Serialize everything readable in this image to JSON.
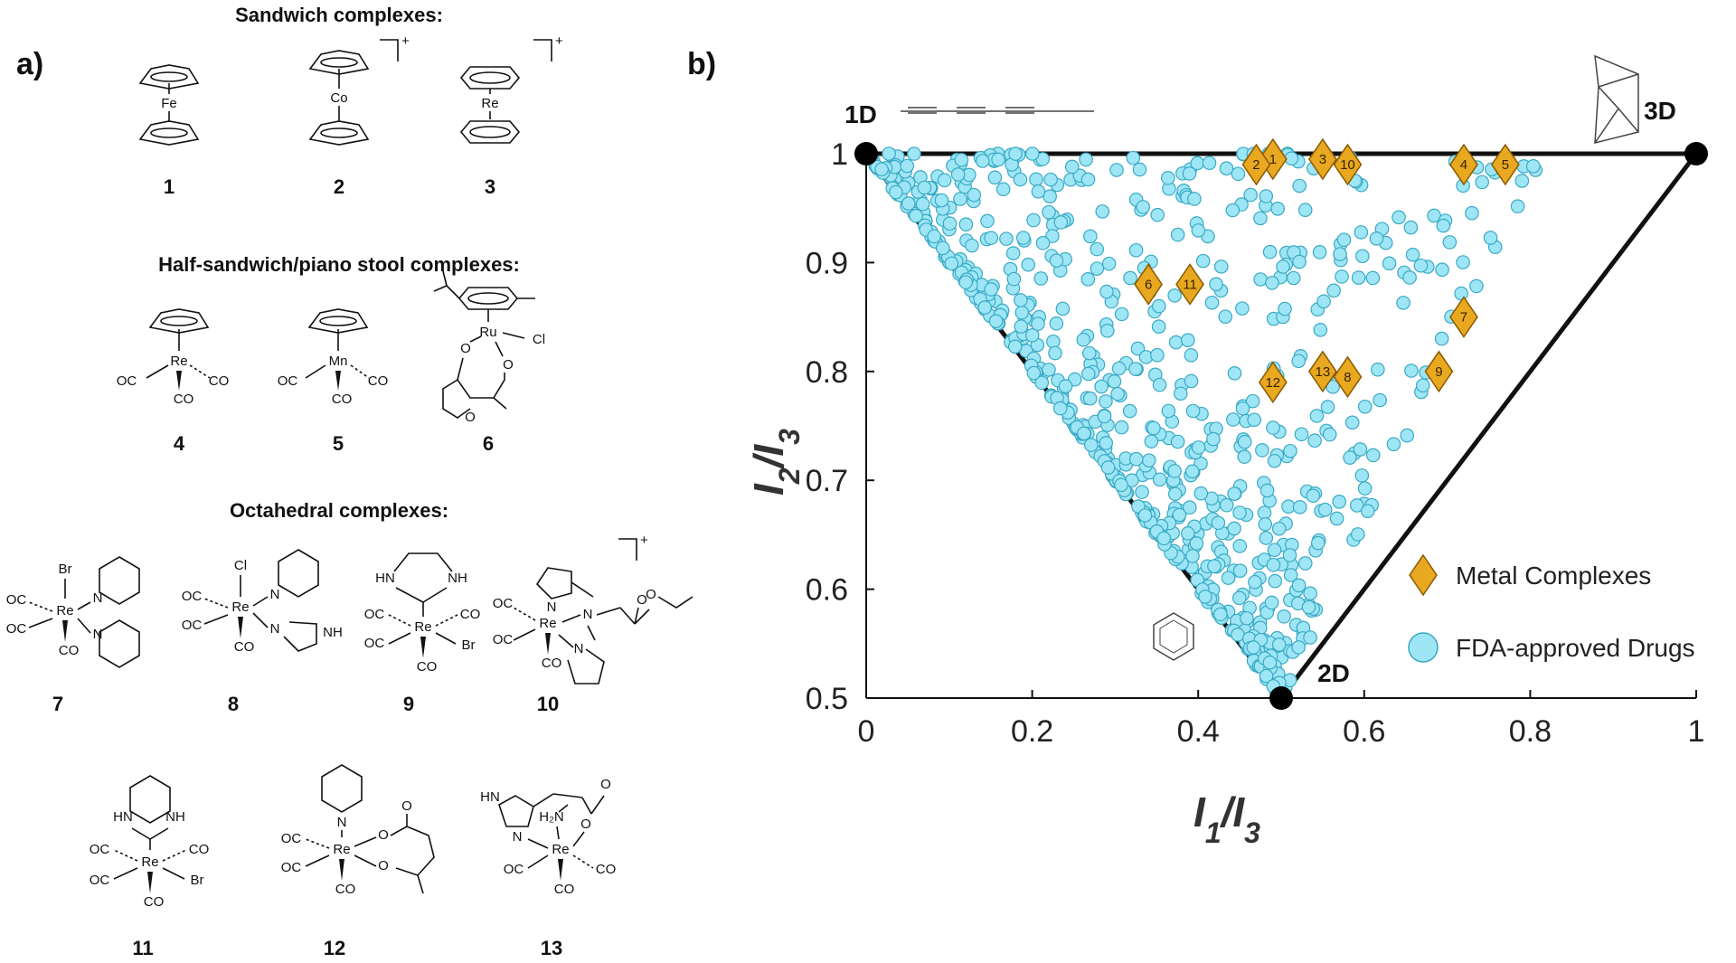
{
  "panels": {
    "a": "a)",
    "b": "b)"
  },
  "sections": {
    "sandwich": "Sandwich complexes:",
    "half_sandwich": "Half-sandwich/piano stool complexes:",
    "octahedral": "Octahedral complexes:"
  },
  "compounds": [
    {
      "num": "1",
      "metal": "Fe"
    },
    {
      "num": "2",
      "metal": "Co"
    },
    {
      "num": "3",
      "metal": "Re"
    },
    {
      "num": "4",
      "metal": "Re"
    },
    {
      "num": "5",
      "metal": "Mn"
    },
    {
      "num": "6",
      "metal": "Ru"
    },
    {
      "num": "7",
      "metal": "Re"
    },
    {
      "num": "8",
      "metal": "Re"
    },
    {
      "num": "9",
      "metal": "Re"
    },
    {
      "num": "10",
      "metal": "Re"
    },
    {
      "num": "11",
      "metal": "Re"
    },
    {
      "num": "12",
      "metal": "Re"
    },
    {
      "num": "13",
      "metal": "Re"
    }
  ],
  "atoms": {
    "co": "CO",
    "oc": "OC",
    "br": "Br",
    "cl": "Cl",
    "n": "N",
    "hn": "HN",
    "nh": "NH",
    "o": "O",
    "h2n": "H₂N",
    "charge": "+"
  },
  "colors": {
    "drug_fill": "#9ee6f5",
    "drug_stroke": "#3aa9c4",
    "metal_fill": "#e8a820",
    "metal_stroke": "#8a5a00",
    "axis": "#111111"
  },
  "chart_data": {
    "type": "scatter",
    "title": "",
    "xlabel": "I1/I3",
    "ylabel": "I2/I3",
    "xlim": [
      0,
      1
    ],
    "ylim": [
      0.5,
      1
    ],
    "xticks": [
      "0",
      "0.2",
      "0.4",
      "0.6",
      "0.8",
      "1"
    ],
    "yticks": [
      "0.5",
      "0.6",
      "0.7",
      "0.8",
      "0.9",
      "1"
    ],
    "triangle_vertices": [
      {
        "label": "1D",
        "x": 0,
        "y": 1
      },
      {
        "label": "2D",
        "x": 0.5,
        "y": 0.5
      },
      {
        "label": "3D",
        "x": 1,
        "y": 1
      }
    ],
    "legend_position": "right",
    "series": [
      {
        "name": "Metal Complexes",
        "marker": "diamond",
        "points": [
          {
            "label": "1",
            "x": 0.49,
            "y": 0.995
          },
          {
            "label": "2",
            "x": 0.47,
            "y": 0.99
          },
          {
            "label": "3",
            "x": 0.55,
            "y": 0.995
          },
          {
            "label": "4",
            "x": 0.72,
            "y": 0.99
          },
          {
            "label": "5",
            "x": 0.77,
            "y": 0.99
          },
          {
            "label": "6",
            "x": 0.34,
            "y": 0.88
          },
          {
            "label": "7",
            "x": 0.72,
            "y": 0.85
          },
          {
            "label": "8",
            "x": 0.58,
            "y": 0.795
          },
          {
            "label": "9",
            "x": 0.69,
            "y": 0.8
          },
          {
            "label": "10",
            "x": 0.58,
            "y": 0.99
          },
          {
            "label": "11",
            "x": 0.39,
            "y": 0.88
          },
          {
            "label": "12",
            "x": 0.49,
            "y": 0.79
          },
          {
            "label": "13",
            "x": 0.55,
            "y": 0.8
          }
        ]
      },
      {
        "name": "FDA-approved Drugs",
        "marker": "circle",
        "generated": {
          "count": 680,
          "note_hidden": false
        }
      }
    ]
  }
}
